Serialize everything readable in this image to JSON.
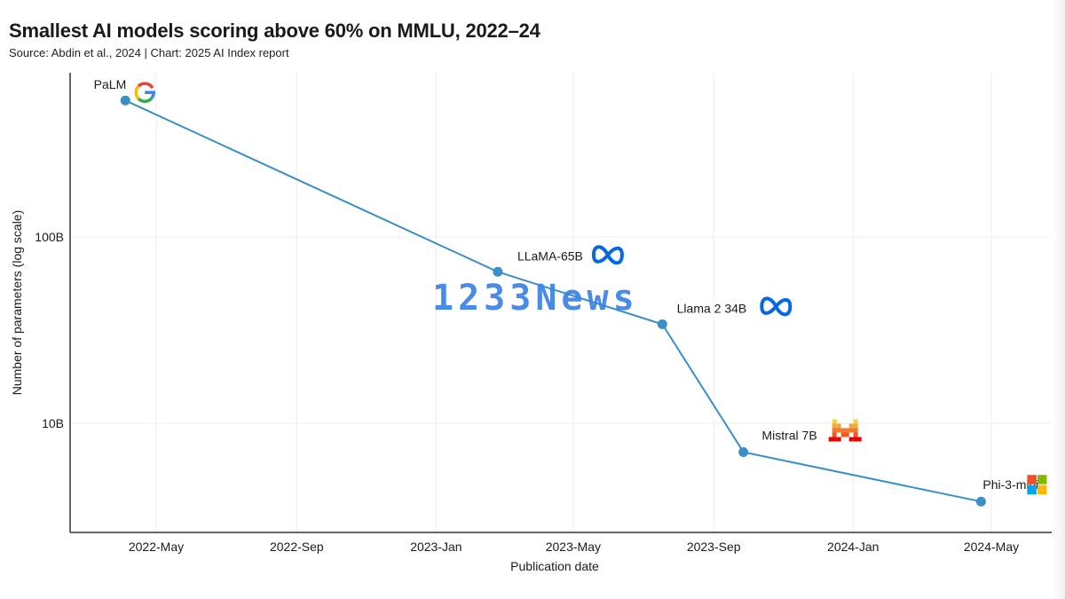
{
  "chart_data": {
    "type": "line",
    "title": "Smallest AI models scoring above 60% on MMLU, 2022–24",
    "subtitle": "Source: Abdin et al., 2024 | Chart: 2025 AI Index report",
    "xlabel": "Publication date",
    "ylabel": "Number of parameters (log scale)",
    "y_scale": "log",
    "y_ticks": [
      {
        "value": 10000000000,
        "label": "10B"
      },
      {
        "value": 100000000000,
        "label": "100B"
      }
    ],
    "x_ticks": [
      {
        "value": "2022-05-01",
        "label": "2022-May"
      },
      {
        "value": "2022-09-01",
        "label": "2022-Sep"
      },
      {
        "value": "2023-01-01",
        "label": "2023-Jan"
      },
      {
        "value": "2023-05-01",
        "label": "2023-May"
      },
      {
        "value": "2023-09-01",
        "label": "2023-Sep"
      },
      {
        "value": "2024-01-01",
        "label": "2024-Jan"
      },
      {
        "value": "2024-05-01",
        "label": "2024-May"
      }
    ],
    "grid": true,
    "line_color": "#3a8fc4",
    "points": [
      {
        "label": "PaLM",
        "x": "2022-04-04",
        "y": 540000000000,
        "icon": "google-logo-icon"
      },
      {
        "label": "LLaMA-65B",
        "x": "2023-02-24",
        "y": 65000000000,
        "icon": "meta-logo-icon"
      },
      {
        "label": "Llama 2 34B",
        "x": "2023-07-18",
        "y": 34000000000,
        "icon": "meta-logo-icon"
      },
      {
        "label": "Mistral 7B",
        "x": "2023-09-27",
        "y": 7000000000,
        "icon": "mistral-logo-icon"
      },
      {
        "label": "Phi-3-mini",
        "x": "2024-04-22",
        "y": 3800000000,
        "icon": "microsoft-logo-icon"
      }
    ]
  },
  "watermark": "1233News"
}
